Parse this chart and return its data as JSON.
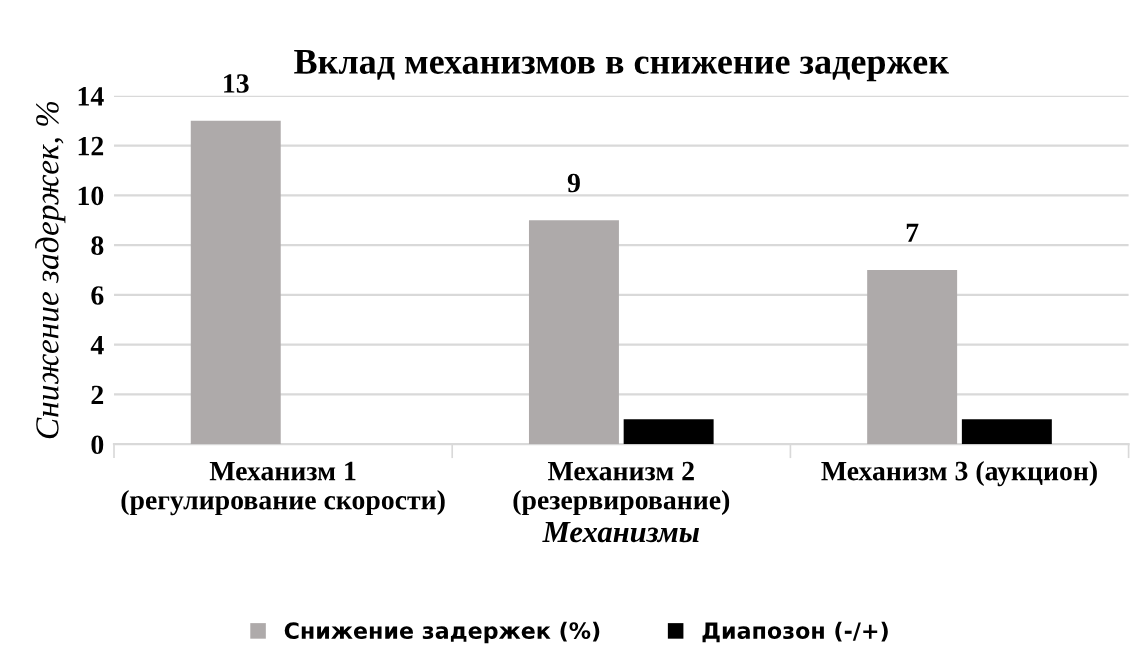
{
  "chart_data": {
    "type": "bar",
    "title": "Вклад механизмов в снижение задержек",
    "xlabel": "Механизмы",
    "ylabel": "Снижение задержек, %",
    "categories": [
      "Механизм 1\n(регулирование скорости)",
      "Механизм 2\n(резервирование)",
      "Механизм 3 (аукцион)"
    ],
    "series": [
      {
        "name": "Снижение задержек (%)",
        "color": "#aeaaaa",
        "values": [
          13,
          9,
          7
        ],
        "value_labels": [
          "13",
          "9",
          "7"
        ]
      },
      {
        "name": "Диапозон (-/+)",
        "color": "#000000",
        "values": [
          null,
          1,
          1
        ]
      }
    ],
    "ylim": [
      0,
      14
    ],
    "yticks": [
      0,
      2,
      4,
      6,
      8,
      10,
      12,
      14
    ],
    "grid": "y",
    "legend": "bottom"
  }
}
